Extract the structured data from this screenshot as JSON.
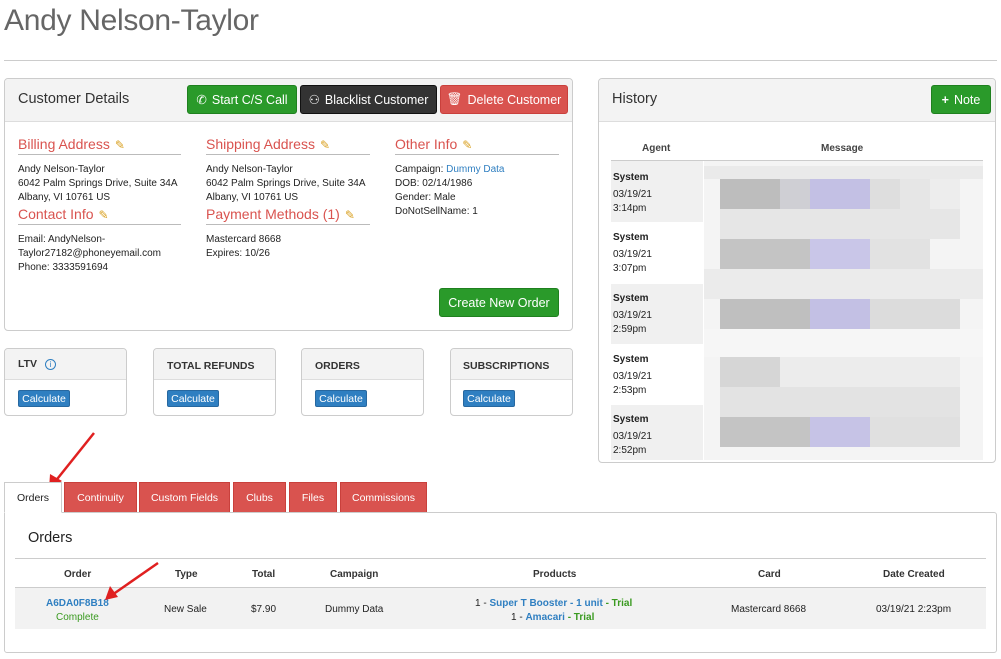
{
  "header": {
    "title": "Andy Nelson-Taylor"
  },
  "customer_details": {
    "title": "Customer Details",
    "buttons": {
      "start_call": "Start C/S Call",
      "blacklist": "Blacklist Customer",
      "delete": "Delete Customer"
    },
    "billing": {
      "title": "Billing Address",
      "lines": [
        "Andy Nelson-Taylor",
        "6042 Palm Springs Drive, Suite 34A",
        "Albany, VI 10761 US"
      ]
    },
    "shipping": {
      "title": "Shipping Address",
      "lines": [
        "Andy Nelson-Taylor",
        "6042 Palm Springs Drive, Suite 34A",
        "Albany, VI 10761 US"
      ]
    },
    "other": {
      "title": "Other Info",
      "campaign_label": "Campaign:",
      "campaign_value": "Dummy Data",
      "dob": "DOB: 02/14/1986",
      "gender": "Gender: Male",
      "donotsell": "DoNotSellName: 1"
    },
    "contact": {
      "title": "Contact Info",
      "email_line1": "Email: AndyNelson-",
      "email_line2": "Taylor27182@phoneyemail.com",
      "phone": "Phone: 3333591694"
    },
    "payment": {
      "title": "Payment Methods (1)",
      "card": "Mastercard 8668",
      "expires": "Expires: 10/26"
    },
    "create_order": "Create New Order"
  },
  "stats": [
    {
      "label": "LTV",
      "button": "Calculate"
    },
    {
      "label": "TOTAL REFUNDS",
      "button": "Calculate"
    },
    {
      "label": "ORDERS",
      "button": "Calculate"
    },
    {
      "label": "SUBSCRIPTIONS",
      "button": "Calculate"
    }
  ],
  "history": {
    "title": "History",
    "note_button": "Note",
    "columns": {
      "agent": "Agent",
      "message": "Message"
    },
    "rows": [
      {
        "agent": "System",
        "date": "03/19/21",
        "time": "3:14pm"
      },
      {
        "agent": "System",
        "date": "03/19/21",
        "time": "3:07pm"
      },
      {
        "agent": "System",
        "date": "03/19/21",
        "time": "2:59pm"
      },
      {
        "agent": "System",
        "date": "03/19/21",
        "time": "2:53pm"
      },
      {
        "agent": "System",
        "date": "03/19/21",
        "time": "2:52pm"
      }
    ]
  },
  "tabs": [
    "Orders",
    "Continuity",
    "Custom Fields",
    "Clubs",
    "Files",
    "Commissions"
  ],
  "orders": {
    "title": "Orders",
    "columns": [
      "Order",
      "Type",
      "Total",
      "Campaign",
      "Products",
      "Card",
      "Date Created"
    ],
    "rows": [
      {
        "order_id": "A6DA0F8B18",
        "status": "Complete",
        "type": "New Sale",
        "total": "$7.90",
        "campaign": "Dummy Data",
        "product1_qty": "1 -",
        "product1_name": "Super T Booster - 1 unit",
        "product1_tag": "- Trial",
        "product2_qty": "1 -",
        "product2_name": "Amacari",
        "product2_tag": "- Trial",
        "card": "Mastercard 8668",
        "date": "03/19/21 2:23pm"
      }
    ]
  },
  "colors": {
    "accent_red": "#d9534f",
    "green": "#2a9a2a",
    "blue_link": "#2f7fc1",
    "trial_green": "#3a9a20",
    "arrow": "#e02020"
  }
}
